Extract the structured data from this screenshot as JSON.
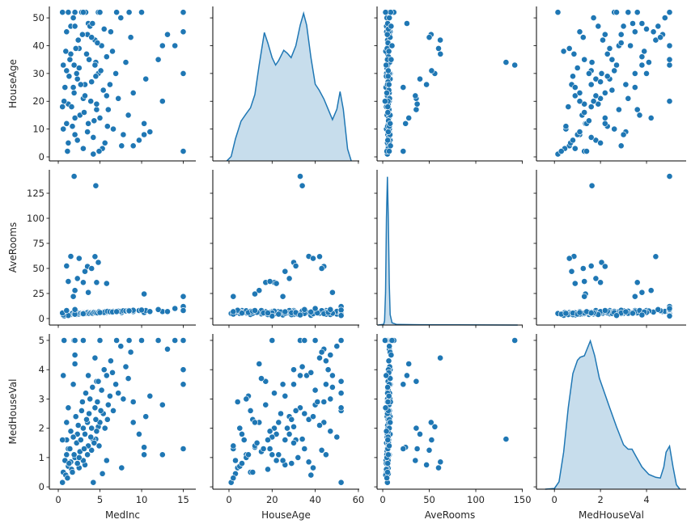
{
  "chart_data": {
    "type": "pairplot",
    "subtype": [
      "scatter",
      "kde"
    ],
    "grid": false,
    "colors": {
      "marker": "#1f77b4",
      "marker_edge": "#ffffff",
      "kde_line": "#1f77b4",
      "kde_fill": "#1f77b4",
      "axis": "#000000"
    },
    "x_vars": [
      "MedInc",
      "HouseAge",
      "AveRooms",
      "MedHouseVal"
    ],
    "y_vars": [
      "HouseAge",
      "AveRooms",
      "MedHouseVal"
    ],
    "var_axes": {
      "MedInc": {
        "label": "MedInc",
        "lim": [
          -1.07,
          16.5
        ],
        "ticks": [
          0,
          5,
          10,
          15
        ]
      },
      "HouseAge": {
        "label": "HouseAge",
        "lim": [
          -7.5,
          60.4
        ],
        "ticks": [
          0,
          20,
          40,
          60
        ],
        "ylim": [
          -1.45,
          54.1
        ],
        "yticks": [
          0,
          10,
          20,
          30,
          40,
          50
        ]
      },
      "AveRooms": {
        "label": "AveRooms",
        "lim": [
          -6.1,
          150.4
        ],
        "ticks": [
          0,
          50,
          100,
          150
        ],
        "ylim": [
          -6.5,
          148.4
        ],
        "yticks": [
          0,
          25,
          50,
          75,
          100,
          125
        ]
      },
      "MedHouseVal": {
        "label": "MedHouseVal",
        "lim": [
          -0.78,
          5.72
        ],
        "ticks": [
          0,
          2,
          4
        ],
        "ylim": [
          -0.08,
          5.22
        ],
        "yticks": [
          0,
          1,
          2,
          3,
          4,
          5
        ]
      }
    },
    "record_fields": [
      "MedInc",
      "HouseAge",
      "AveRooms",
      "MedHouseVal"
    ],
    "records": [
      [
        1.9,
        33,
        141.9,
        5.0
      ],
      [
        4.5,
        34,
        132.5,
        1.63
      ],
      [
        1.5,
        37,
        62,
        0.85
      ],
      [
        2.5,
        39,
        60,
        0.65
      ],
      [
        4.4,
        42,
        61.8,
        4.4
      ],
      [
        4.8,
        30,
        56,
        2.05
      ],
      [
        1.0,
        31,
        52.5,
        1.6
      ],
      [
        3.5,
        44,
        52,
        2.2
      ],
      [
        4.0,
        43,
        50,
        1.25
      ],
      [
        3.2,
        26,
        47,
        0.75
      ],
      [
        2.3,
        28,
        40,
        1.8
      ],
      [
        4.6,
        17,
        36,
        3.6
      ],
      [
        3.0,
        21,
        36,
        2.0
      ],
      [
        1.2,
        19,
        37,
        1.3
      ],
      [
        5.8,
        22,
        35,
        0.9
      ],
      [
        2.0,
        14,
        28,
        4.2
      ],
      [
        3.6,
        48,
        26,
        3.8
      ],
      [
        1.8,
        25,
        22,
        3.5
      ],
      [
        10.3,
        12,
        24.5,
        1.35
      ],
      [
        15,
        2,
        22,
        1.3
      ],
      [
        15,
        52,
        12,
        5.0
      ],
      [
        15,
        30,
        8,
        4.0
      ],
      [
        15,
        45,
        8,
        3.5
      ],
      [
        12.5,
        40,
        7,
        2.8
      ],
      [
        12.5,
        20,
        7,
        1.1
      ],
      [
        10.3,
        8,
        6,
        1.1
      ],
      [
        10.5,
        28,
        8,
        2.4
      ],
      [
        13.1,
        44,
        7,
        4.7
      ],
      [
        11,
        9,
        7,
        3.1
      ],
      [
        9.7,
        6,
        8,
        1.8
      ],
      [
        9,
        23,
        7,
        2.2
      ],
      [
        7.6,
        4,
        6,
        0.65
      ],
      [
        5.3,
        3,
        6,
        0.45
      ],
      [
        4.2,
        1,
        5,
        0.15
      ],
      [
        0.5,
        52,
        5,
        0.15
      ],
      [
        0.6,
        10,
        4,
        0.5
      ],
      [
        0.8,
        25,
        3.5,
        0.9
      ],
      [
        1.0,
        45,
        4.2,
        1.1
      ],
      [
        1.2,
        5,
        5,
        0.7
      ],
      [
        1.4,
        35,
        4.8,
        1.3
      ],
      [
        1.6,
        18,
        3.9,
        0.6
      ],
      [
        1.8,
        50,
        4.5,
        1.7
      ],
      [
        2.0,
        8,
        5.5,
        1.0
      ],
      [
        2.2,
        30,
        4.1,
        1.5
      ],
      [
        2.4,
        42,
        5.2,
        2.1
      ],
      [
        2.6,
        15,
        4.6,
        1.2
      ],
      [
        2.8,
        52,
        5.0,
        2.6
      ],
      [
        3.0,
        3,
        5.8,
        0.9
      ],
      [
        3.2,
        22,
        4.9,
        1.8
      ],
      [
        3.4,
        37,
        5.3,
        2.3
      ],
      [
        3.6,
        12,
        6.1,
        1.4
      ],
      [
        3.8,
        47,
        5.1,
        3.0
      ],
      [
        4.0,
        27,
        5.6,
        2.0
      ],
      [
        4.2,
        7,
        6.3,
        1.6
      ],
      [
        4.4,
        33,
        5.4,
        2.7
      ],
      [
        4.6,
        19,
        6.0,
        1.9
      ],
      [
        4.8,
        52,
        5.7,
        3.6
      ],
      [
        5.0,
        14,
        6.4,
        2.2
      ],
      [
        5.2,
        40,
        5.9,
        3.3
      ],
      [
        5.4,
        24,
        6.6,
        2.5
      ],
      [
        5.6,
        5,
        7.0,
        2.0
      ],
      [
        5.8,
        36,
        6.2,
        3.8
      ],
      [
        6.0,
        17,
        6.8,
        2.8
      ],
      [
        6.3,
        45,
        6.5,
        4.3
      ],
      [
        6.6,
        10,
        7.2,
        2.6
      ],
      [
        6.9,
        30,
        6.9,
        3.5
      ],
      [
        7.2,
        21,
        7.4,
        3.2
      ],
      [
        7.5,
        50,
        7.1,
        4.8
      ],
      [
        7.8,
        8,
        7.8,
        3.0
      ],
      [
        8.1,
        34,
        7.5,
        4.1
      ],
      [
        8.4,
        15,
        8.0,
        3.7
      ],
      [
        8.7,
        43,
        7.9,
        4.6
      ],
      [
        9.0,
        4,
        8.3,
        2.9
      ],
      [
        0.9,
        38,
        3.2,
        0.4
      ],
      [
        1.1,
        2,
        4.4,
        0.3
      ],
      [
        1.3,
        29,
        3.8,
        0.8
      ],
      [
        1.5,
        47,
        4.0,
        1.9
      ],
      [
        1.7,
        11,
        5.2,
        0.5
      ],
      [
        1.9,
        23,
        4.3,
        1.1
      ],
      [
        2.1,
        39,
        4.7,
        2.4
      ],
      [
        2.3,
        6,
        5.4,
        0.8
      ],
      [
        2.5,
        32,
        4.4,
        1.0
      ],
      [
        2.7,
        26,
        5.1,
        1.6
      ],
      [
        2.9,
        44,
        4.9,
        2.9
      ],
      [
        3.1,
        16,
        5.5,
        1.3
      ],
      [
        3.3,
        52,
        5.2,
        3.2
      ],
      [
        3.5,
        9,
        6.0,
        1.1
      ],
      [
        3.7,
        35,
        5.0,
        2.5
      ],
      [
        3.9,
        20,
        5.7,
        1.7
      ],
      [
        4.1,
        48,
        5.3,
        3.4
      ],
      [
        4.3,
        13,
        6.2,
        1.5
      ],
      [
        4.5,
        29,
        5.8,
        2.3
      ],
      [
        4.7,
        41,
        5.6,
        2.9
      ],
      [
        4.9,
        2,
        6.9,
        1.4
      ],
      [
        5.1,
        31,
        6.0,
        2.6
      ],
      [
        5.5,
        46,
        6.1,
        4.0
      ],
      [
        5.9,
        11,
        7.1,
        2.3
      ],
      [
        6.2,
        26,
        6.7,
        3.1
      ],
      [
        6.5,
        38,
        6.6,
        3.9
      ],
      [
        7.0,
        52,
        6.9,
        5.0
      ],
      [
        3.0,
        52,
        4.8,
        5.0
      ],
      [
        2.0,
        52,
        4.2,
        5.0
      ],
      [
        5.0,
        52,
        6.0,
        5.0
      ],
      [
        8.5,
        52,
        7.7,
        5.0
      ],
      [
        10.0,
        52,
        8.5,
        5.0
      ],
      [
        12.0,
        35,
        9,
        5.0
      ],
      [
        14.0,
        40,
        10,
        5.0
      ],
      [
        0.7,
        20,
        2.5,
        5.0
      ],
      [
        1.2,
        52,
        3,
        2.7
      ],
      [
        0.6,
        33,
        3.6,
        3.8
      ],
      [
        0.5,
        18,
        5.5,
        1.6
      ],
      [
        1.0,
        12,
        8,
        2.2
      ],
      [
        2.0,
        47,
        9,
        4.5
      ]
    ],
    "kde": {
      "HouseAge": {
        "x": [
          -1,
          1,
          3,
          5.6,
          8,
          10,
          12,
          14,
          16.4,
          18,
          20,
          21.6,
          23,
          25.4,
          27,
          28.8,
          31,
          33,
          34.6,
          36,
          38,
          40,
          41.8,
          44,
          46,
          48,
          50,
          51.5,
          53,
          55,
          56.7
        ],
        "density_rel": [
          0,
          0.03,
          0.15,
          0.27,
          0.32,
          0.36,
          0.45,
          0.65,
          0.87,
          0.8,
          0.7,
          0.65,
          0.68,
          0.75,
          0.73,
          0.7,
          0.78,
          0.92,
          1.0,
          0.92,
          0.7,
          0.52,
          0.48,
          0.42,
          0.35,
          0.28,
          0.35,
          0.47,
          0.35,
          0.08,
          0
        ]
      },
      "AveRooms": {
        "x": [
          -5,
          1,
          2,
          3,
          4,
          5,
          6,
          7,
          8,
          10,
          15,
          40,
          80,
          145
        ],
        "density_rel": [
          0,
          0.005,
          0.03,
          0.22,
          0.72,
          1.0,
          0.72,
          0.28,
          0.07,
          0.015,
          0.004,
          0.002,
          0.001,
          0
        ]
      },
      "MedHouseVal": {
        "x": [
          -0.4,
          0,
          0.2,
          0.4,
          0.6,
          0.8,
          1.0,
          1.12,
          1.3,
          1.56,
          1.75,
          1.95,
          2.13,
          2.4,
          2.7,
          3.0,
          3.2,
          3.37,
          3.55,
          3.8,
          4.1,
          4.4,
          4.6,
          4.75,
          4.85,
          5.0,
          5.15,
          5.3,
          5.45
        ],
        "density_rel": [
          0,
          0.005,
          0.05,
          0.25,
          0.55,
          0.78,
          0.87,
          0.89,
          0.9,
          1.0,
          0.9,
          0.75,
          0.67,
          0.55,
          0.42,
          0.3,
          0.27,
          0.27,
          0.22,
          0.15,
          0.1,
          0.08,
          0.075,
          0.15,
          0.25,
          0.29,
          0.15,
          0.03,
          0
        ]
      }
    }
  }
}
